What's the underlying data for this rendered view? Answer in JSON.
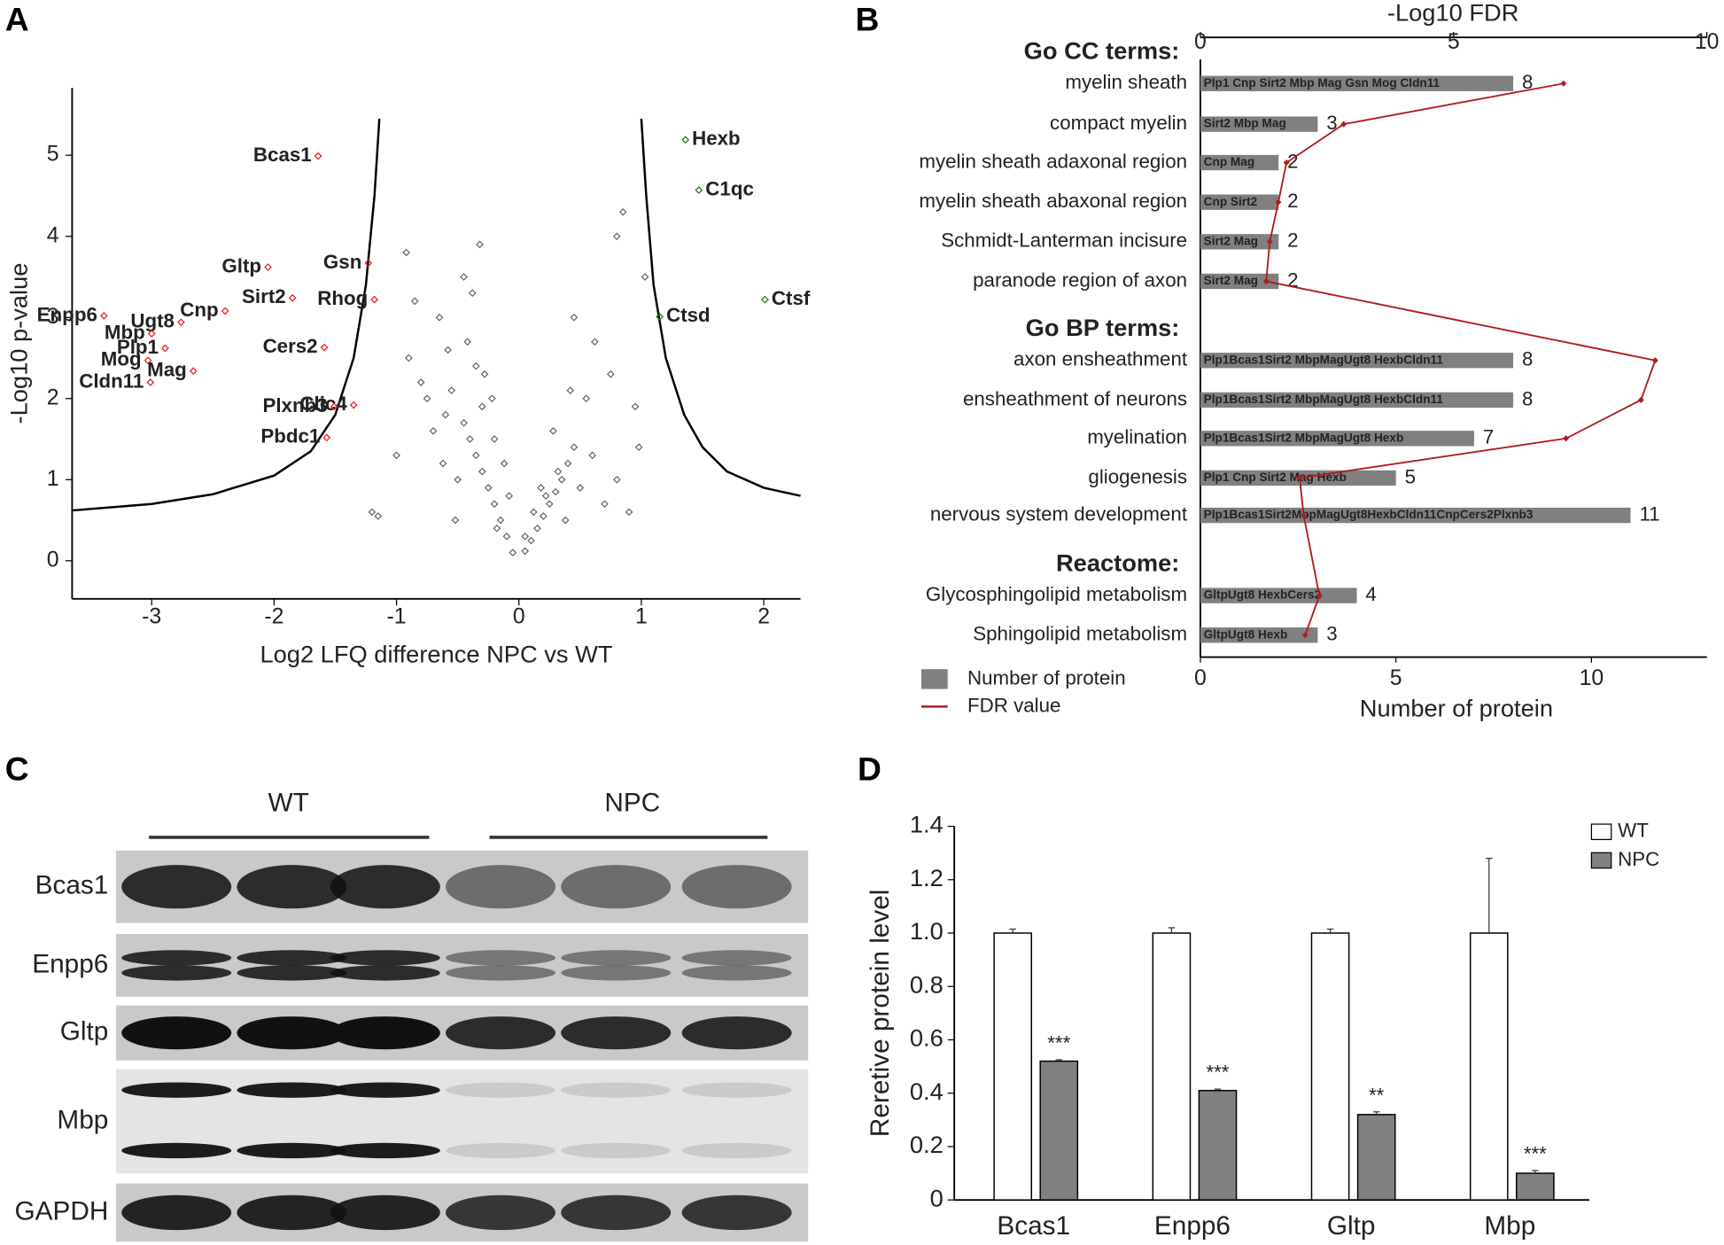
{
  "chart_data": [
    {
      "type": "scatter",
      "panel": "A",
      "xlabel": "Log2 LFQ difference NPC vs WT",
      "ylabel": "-Log10 p-value",
      "xlim": [
        -3.65,
        2.3
      ],
      "ylim": [
        -0.47,
        5.83
      ],
      "xticks": [
        -3,
        -2,
        -1,
        0,
        1,
        2
      ],
      "yticks": [
        0,
        1,
        2,
        3,
        4,
        5
      ],
      "series": [
        {
          "color": "#666666",
          "x": [
            -0.05,
            0.05,
            -0.1,
            0.1,
            -0.15,
            0.15,
            -0.2,
            0.2,
            -0.25,
            0.25,
            -0.3,
            0.3,
            -0.35,
            0.35,
            -0.4,
            0.4,
            -0.45,
            0.45,
            -0.3,
            0.32,
            -0.2,
            0.22,
            -0.28,
            0.12,
            -0.12,
            -0.5,
            0.5,
            -0.55,
            0.6,
            -0.6,
            0.7,
            -0.7,
            -0.8,
            0.8,
            -0.9,
            0.9,
            -0.65,
            0.55,
            -0.45,
            -0.38,
            -0.32,
            -0.42,
            0.28,
            -0.85,
            -0.92,
            0.75,
            -1.0,
            0.95,
            -0.58,
            0.62,
            -0.75,
            0.85,
            -1.2,
            -1.15,
            0.8,
            1.03,
            0.45,
            -0.62,
            0.98,
            -0.52,
            0.05,
            -0.08,
            0.18,
            -0.18,
            0.38,
            -0.22,
            -0.35,
            0.42
          ],
          "y": [
            0.1,
            0.12,
            0.3,
            0.25,
            0.5,
            0.4,
            0.7,
            0.55,
            0.9,
            0.7,
            1.1,
            0.85,
            1.3,
            1.0,
            1.5,
            1.2,
            1.7,
            1.4,
            1.9,
            1.1,
            1.5,
            0.8,
            2.3,
            0.6,
            1.2,
            1.0,
            0.9,
            2.1,
            1.3,
            1.8,
            0.7,
            1.6,
            2.2,
            1.0,
            2.5,
            0.6,
            3.0,
            2.0,
            3.5,
            3.3,
            3.9,
            2.7,
            1.6,
            3.2,
            3.8,
            2.3,
            1.3,
            1.9,
            2.6,
            2.7,
            2.0,
            4.3,
            0.6,
            0.55,
            4.0,
            3.5,
            3.0,
            1.2,
            1.4,
            0.5,
            0.3,
            0.8,
            0.9,
            0.4,
            0.5,
            2.0,
            2.4,
            2.1
          ]
        }
      ],
      "threshold": {
        "color": "#000000",
        "x": [
          -3.65,
          -3,
          -2.5,
          -2,
          -1.7,
          -1.5,
          -1.35,
          -1.25,
          -1.18,
          -1.14,
          null,
          1.0,
          1.04,
          1.1,
          1.2,
          1.35,
          1.5,
          1.7,
          2.0,
          2.3
        ],
        "y": [
          0.62,
          0.7,
          0.82,
          1.05,
          1.35,
          1.8,
          2.5,
          3.4,
          4.5,
          5.45,
          null,
          5.45,
          4.5,
          3.4,
          2.5,
          1.8,
          1.4,
          1.1,
          0.9,
          0.8
        ]
      },
      "annotations": [
        {
          "text": "Bcas1",
          "x": -1.64,
          "y": 4.99,
          "color": "#e8191f"
        },
        {
          "text": "Gsn",
          "x": -1.23,
          "y": 3.67,
          "color": "#e8191f"
        },
        {
          "text": "Gltp",
          "x": -2.05,
          "y": 3.62,
          "color": "#e8191f"
        },
        {
          "text": "Sirt2",
          "x": -1.85,
          "y": 3.24,
          "color": "#e8191f"
        },
        {
          "text": "Rhog",
          "x": -1.18,
          "y": 3.22,
          "color": "#e8191f"
        },
        {
          "text": "Cnp",
          "x": -2.4,
          "y": 3.08,
          "color": "#e8191f"
        },
        {
          "text": "Ugt8",
          "x": -2.76,
          "y": 2.94,
          "color": "#e8191f"
        },
        {
          "text": "Enpp6",
          "x": -3.39,
          "y": 3.02,
          "color": "#e8191f"
        },
        {
          "text": "Mbp",
          "x": -3.0,
          "y": 2.8,
          "color": "#e8191f"
        },
        {
          "text": "Plp1",
          "x": -2.89,
          "y": 2.62,
          "color": "#e8191f"
        },
        {
          "text": "Mog",
          "x": -3.03,
          "y": 2.47,
          "color": "#e8191f"
        },
        {
          "text": "Mag",
          "x": -2.66,
          "y": 2.34,
          "color": "#e8191f"
        },
        {
          "text": "Cldn11",
          "x": -3.01,
          "y": 2.2,
          "color": "#e8191f"
        },
        {
          "text": "Cers2",
          "x": -1.59,
          "y": 2.63,
          "color": "#e8191f"
        },
        {
          "text": "Clic4",
          "x": -1.35,
          "y": 1.92,
          "color": "#e8191f"
        },
        {
          "text": "Plxnb3",
          "x": -1.51,
          "y": 1.9,
          "color": "#e8191f"
        },
        {
          "text": "Pbdc1",
          "x": -1.57,
          "y": 1.52,
          "color": "#e8191f"
        },
        {
          "text": "Hexb",
          "x": 1.36,
          "y": 5.19,
          "color": "#1a7a1a"
        },
        {
          "text": "C1qc",
          "x": 1.47,
          "y": 4.57,
          "color": "#1a7a1a"
        },
        {
          "text": "Ctsd",
          "x": 1.15,
          "y": 3.01,
          "color": "#1a7a1a"
        },
        {
          "text": "Ctsf",
          "x": 2.01,
          "y": 3.22,
          "color": "#1a7a1a"
        }
      ]
    },
    {
      "type": "bar",
      "panel": "B",
      "orientation": "horizontal",
      "xlabel": "Number of protein",
      "xlim": [
        0,
        12.95
      ],
      "xticks": [
        0,
        5,
        10
      ],
      "x2label": "-Log10 FDR",
      "x2lim": [
        0,
        10
      ],
      "x2ticks": [
        0,
        5,
        10
      ],
      "sections": [
        {
          "title": "Go CC terms:",
          "categories": [
            "myelin sheath",
            "compact myelin",
            "myelin sheath adaxonal region",
            "myelin sheath abaxonal region",
            "Schmidt-Lanterman incisure",
            "paranode region of axon"
          ],
          "genes": [
            "Plp1 Cnp Sirt2 Mbp Mag Gsn Mog Cldn11",
            "Sirt2 Mbp Mag",
            "Cnp Mag",
            "Cnp Sirt2",
            "Sirt2 Mag",
            "Sirt2 Mag"
          ]
        },
        {
          "title": "Go BP terms:",
          "categories": [
            "axon ensheathment",
            "ensheathment of neurons",
            "myelination",
            "gliogenesis",
            "nervous system development"
          ],
          "genes": [
            "Plp1Bcas1Sirt2 MbpMagUgt8 HexbCldn11",
            "Plp1Bcas1Sirt2 MbpMagUgt8 HexbCldn11",
            "Plp1Bcas1Sirt2 MbpMagUgt8 Hexb",
            "Plp1 Cnp Sirt2 Mag Hexb",
            "Plp1Bcas1Sirt2MbpMagUgt8HexbCldn11CnpCers2Plxnb3"
          ]
        },
        {
          "title": "Reactome:",
          "categories": [
            "Glycosphingolipid metabolism",
            "Sphingolipid metabolism"
          ],
          "genes": [
            "GltpUgt8 HexbCers2",
            "GltpUgt8 Hexb"
          ]
        }
      ],
      "series": [
        {
          "name": "Number of protein",
          "color": "#808080",
          "values": [
            8,
            3,
            2,
            2,
            2,
            2,
            8,
            8,
            7,
            5,
            11,
            4,
            3
          ]
        },
        {
          "name": "FDR value",
          "color": "#b01c1c",
          "axis": "x2",
          "values": [
            7.17,
            2.83,
            1.7,
            1.54,
            1.37,
            1.3,
            8.98,
            8.7,
            7.22,
            1.96,
            2.04,
            2.35,
            2.07
          ]
        }
      ]
    },
    {
      "type": "bar",
      "panel": "D",
      "categories": [
        "Bcas1",
        "Enpp6",
        "Gltp",
        "Mbp"
      ],
      "ylabel": "Reretive protein level",
      "ylim": [
        0,
        1.4
      ],
      "yticks": [
        0,
        0.2,
        0.4,
        0.6,
        0.8,
        {
          "value": 1,
          "label": "1.0"
        },
        1.2,
        1.4
      ],
      "legend": "upper right",
      "series": [
        {
          "name": "WT",
          "color": "#ffffff",
          "values": [
            1,
            1,
            1,
            1
          ],
          "errors": [
            0.015,
            0.02,
            0.015,
            0.28
          ]
        },
        {
          "name": "NPC",
          "color": "#808080",
          "values": [
            0.52,
            0.41,
            0.32,
            0.1
          ],
          "errors": [
            0.005,
            0.005,
            0.01,
            0.01
          ],
          "significance": [
            "***",
            "***",
            "**",
            "***"
          ]
        }
      ]
    }
  ],
  "blot": {
    "panel": "C",
    "groups": [
      "WT",
      "NPC"
    ],
    "rows": [
      "Bcas1",
      "Enpp6",
      "Gltp",
      "Mbp",
      "GAPDH"
    ]
  }
}
